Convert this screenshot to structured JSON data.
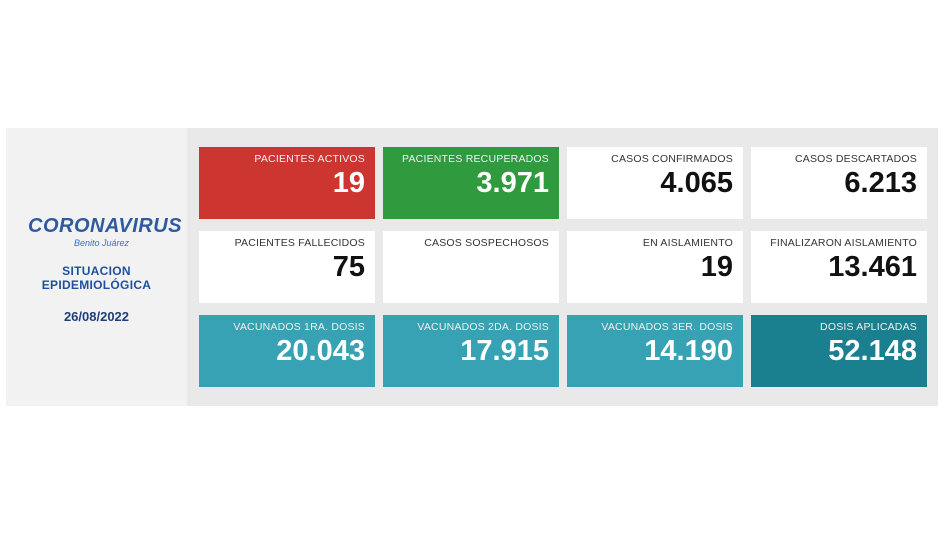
{
  "sidebar": {
    "brand": "CORONAVIRUS",
    "brand_sub": "Benito Juárez",
    "title_line1": "SITUACION",
    "title_line2": "EPIDEMIOLÓGICA",
    "date": "26/08/2022"
  },
  "cards": [
    {
      "label": "PACIENTES ACTIVOS",
      "value": "19"
    },
    {
      "label": "PACIENTES RECUPERADOS",
      "value": "3.971"
    },
    {
      "label": "CASOS CONFIRMADOS",
      "value": "4.065"
    },
    {
      "label": "CASOS DESCARTADOS",
      "value": "6.213"
    },
    {
      "label": "PACIENTES FALLECIDOS",
      "value": "75"
    },
    {
      "label": "CASOS SOSPECHOSOS",
      "value": ""
    },
    {
      "label": "EN AISLAMIENTO",
      "value": "19"
    },
    {
      "label": "FINALIZARON AISLAMIENTO",
      "value": "13.461"
    },
    {
      "label": "VACUNADOS 1RA. DOSIS",
      "value": "20.043"
    },
    {
      "label": "VACUNADOS 2DA. DOSIS",
      "value": "17.915"
    },
    {
      "label": "VACUNADOS 3ER. DOSIS",
      "value": "14.190"
    },
    {
      "label": "DOSIS APLICADAS",
      "value": "52.148"
    }
  ],
  "colors": {
    "activos": "#cd3531",
    "recuperados": "#2f9a3e",
    "vacunados": "#36a2b3",
    "dosis_aplicadas": "#1a7f8e",
    "brand": "#2f5aa0"
  }
}
